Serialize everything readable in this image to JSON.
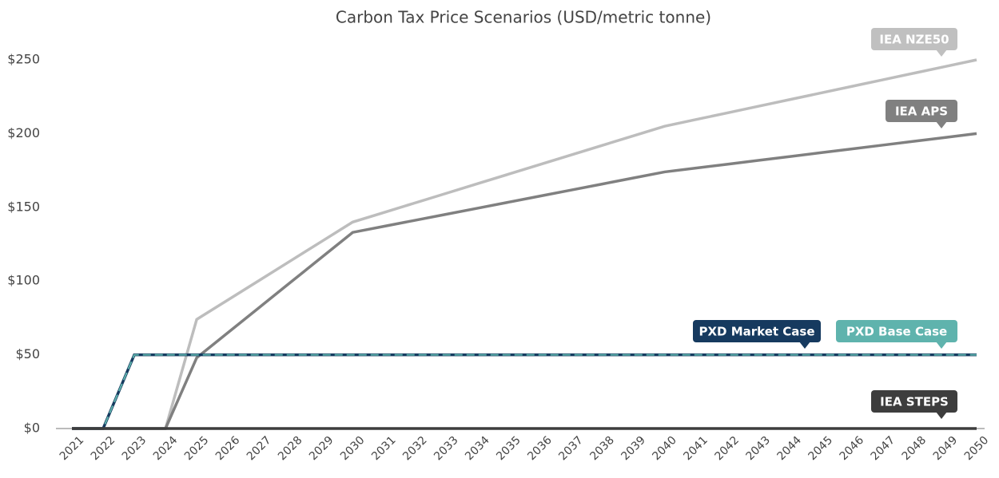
{
  "chart_data": {
    "type": "line",
    "title": "Carbon Tax Price Scenarios (USD/metric tonne)",
    "categories": [
      "2021",
      "2022",
      "2023",
      "2024",
      "2025",
      "2026",
      "2027",
      "2028",
      "2029",
      "2030",
      "2031",
      "2032",
      "2033",
      "2034",
      "2035",
      "2036",
      "2037",
      "2038",
      "2039",
      "2040",
      "2041",
      "2042",
      "2043",
      "2044",
      "2045",
      "2046",
      "2047",
      "2048",
      "2049",
      "2050"
    ],
    "ylim": [
      0,
      250
    ],
    "yticks": [
      {
        "value": 0,
        "label": "$0"
      },
      {
        "value": 50,
        "label": "$50"
      },
      {
        "value": 100,
        "label": "$100"
      },
      {
        "value": 150,
        "label": "$150"
      },
      {
        "value": 200,
        "label": "$200"
      },
      {
        "value": 250,
        "label": "$250"
      }
    ],
    "grid": false,
    "series": [
      {
        "name": "IEA NZE50",
        "color": "#bdbdbd",
        "values": [
          0,
          0,
          0,
          0,
          74,
          87.2,
          100.4,
          113.6,
          126.8,
          140,
          146.5,
          153,
          159.5,
          166,
          172.5,
          179,
          185.5,
          192,
          198.5,
          205,
          209.5,
          214,
          218.5,
          223,
          227.5,
          232,
          236.5,
          241,
          245.5,
          250
        ]
      },
      {
        "name": "IEA APS",
        "color": "#808080",
        "values": [
          0,
          0,
          0,
          0,
          48,
          65,
          82,
          99,
          116,
          133,
          137.1,
          141.2,
          145.3,
          149.4,
          153.5,
          157.6,
          161.7,
          165.8,
          169.9,
          174,
          176.6,
          179.2,
          181.8,
          184.4,
          187,
          189.6,
          192.2,
          194.8,
          197.4,
          200
        ]
      },
      {
        "name": "PXD Market Case",
        "color": "#163a5f",
        "values": [
          0,
          0,
          50,
          50,
          50,
          50,
          50,
          50,
          50,
          50,
          50,
          50,
          50,
          50,
          50,
          50,
          50,
          50,
          50,
          50,
          50,
          50,
          50,
          50,
          50,
          50,
          50,
          50,
          50,
          50
        ]
      },
      {
        "name": "PXD Base Case",
        "color": "#5fb3ad",
        "dashed": true,
        "values": [
          0,
          0,
          50,
          50,
          50,
          50,
          50,
          50,
          50,
          50,
          50,
          50,
          50,
          50,
          50,
          50,
          50,
          50,
          50,
          50,
          50,
          50,
          50,
          50,
          50,
          50,
          50,
          50,
          50,
          50
        ]
      },
      {
        "name": "IEA STEPS",
        "color": "#3d3d3d",
        "values": [
          0,
          0,
          0,
          0,
          0,
          0,
          0,
          0,
          0,
          0,
          0,
          0,
          0,
          0,
          0,
          0,
          0,
          0,
          0,
          0,
          0,
          0,
          0,
          0,
          0,
          0,
          0,
          0,
          0,
          0
        ]
      }
    ]
  }
}
